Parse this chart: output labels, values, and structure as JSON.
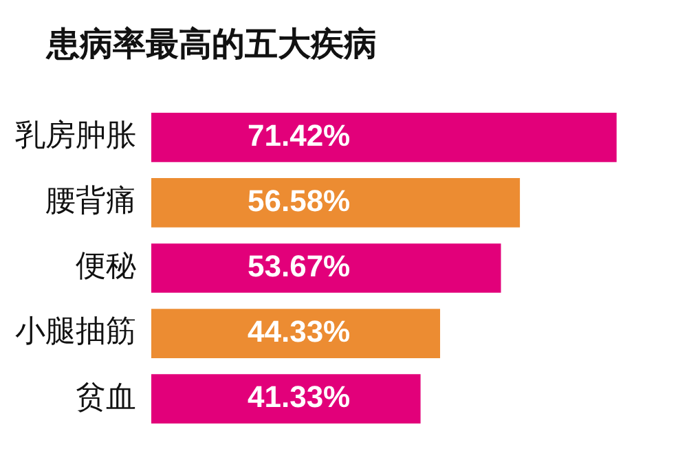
{
  "chart_data": {
    "type": "bar",
    "orientation": "horizontal",
    "title": "患病率最高的五大疾病",
    "categories": [
      "乳房肿胀",
      "腰背痛",
      "便秘",
      "小腿抽筋",
      "贫血"
    ],
    "values": [
      71.42,
      56.58,
      53.67,
      44.33,
      41.33
    ],
    "value_labels": [
      "71.42%",
      "56.58%",
      "53.67%",
      "44.33%",
      "41.33%"
    ],
    "colors": [
      "#e2007a",
      "#ec8c32",
      "#e2007a",
      "#ec8c32",
      "#e2007a"
    ],
    "tick_labels": "y",
    "legend": false
  }
}
